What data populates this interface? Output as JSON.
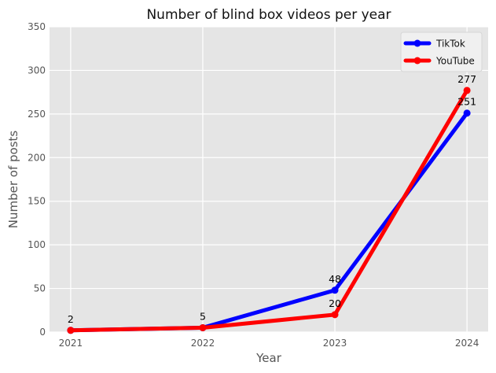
{
  "chart_data": {
    "type": "line",
    "title": "Number of blind box videos per year",
    "xlabel": "Year",
    "ylabel": "Number of posts",
    "categories": [
      "2021",
      "2022",
      "2023",
      "2024"
    ],
    "ylim": [
      0,
      350
    ],
    "yticks": [
      0,
      50,
      100,
      150,
      200,
      250,
      300,
      350
    ],
    "grid": true,
    "legend_position": "top-right",
    "series": [
      {
        "name": "TikTok",
        "color": "#0000ff",
        "values": [
          2,
          5,
          48,
          251
        ]
      },
      {
        "name": "YouTube",
        "color": "#ff0000",
        "values": [
          2,
          5,
          20,
          277
        ]
      }
    ],
    "annotations": [
      {
        "x": "2021",
        "y": 2,
        "text": "2"
      },
      {
        "x": "2022",
        "y": 5,
        "text": "5"
      },
      {
        "x": "2023",
        "y": 48,
        "text": "48"
      },
      {
        "x": "2023",
        "y": 20,
        "text": "20"
      },
      {
        "x": "2024",
        "y": 251,
        "text": "251"
      },
      {
        "x": "2024",
        "y": 277,
        "text": "277"
      }
    ],
    "plot_background": "#e5e5e5",
    "grid_color": "#ffffff"
  }
}
